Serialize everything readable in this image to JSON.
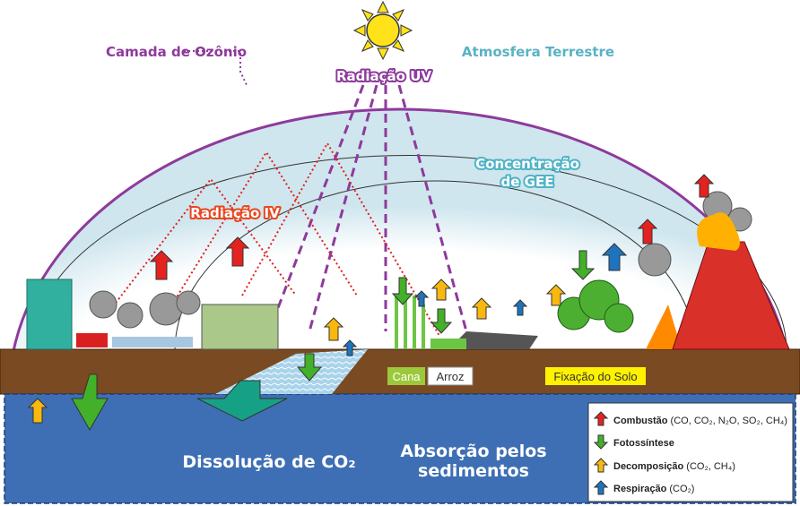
{
  "labels": {
    "ozone_layer": "Camada de Ozônio",
    "atmosphere": "Atmosfera Terrestre",
    "uv_radiation": "Radiação UV",
    "ghg_concentration": [
      "Concentração",
      "de GEE"
    ],
    "ir_radiation": "Radiação IV",
    "cane": "Cana",
    "rice": "Arroz",
    "soil_fixation": "Fixação do Solo",
    "co2_dissolution": "Dissolução de CO₂",
    "sediment_absorption": [
      "Absorção pelos",
      "sedimentos"
    ]
  },
  "legend": [
    {
      "label": "Combustão",
      "detail": " (CO, CO₂, N₂O, SO₂, CH₄)"
    },
    {
      "label": "Fotossíntese",
      "detail": ""
    },
    {
      "label": "Decomposição",
      "detail": " (CO₂, CH₄)"
    },
    {
      "label": "Respiração",
      "detail": " (CO₂)"
    }
  ]
}
